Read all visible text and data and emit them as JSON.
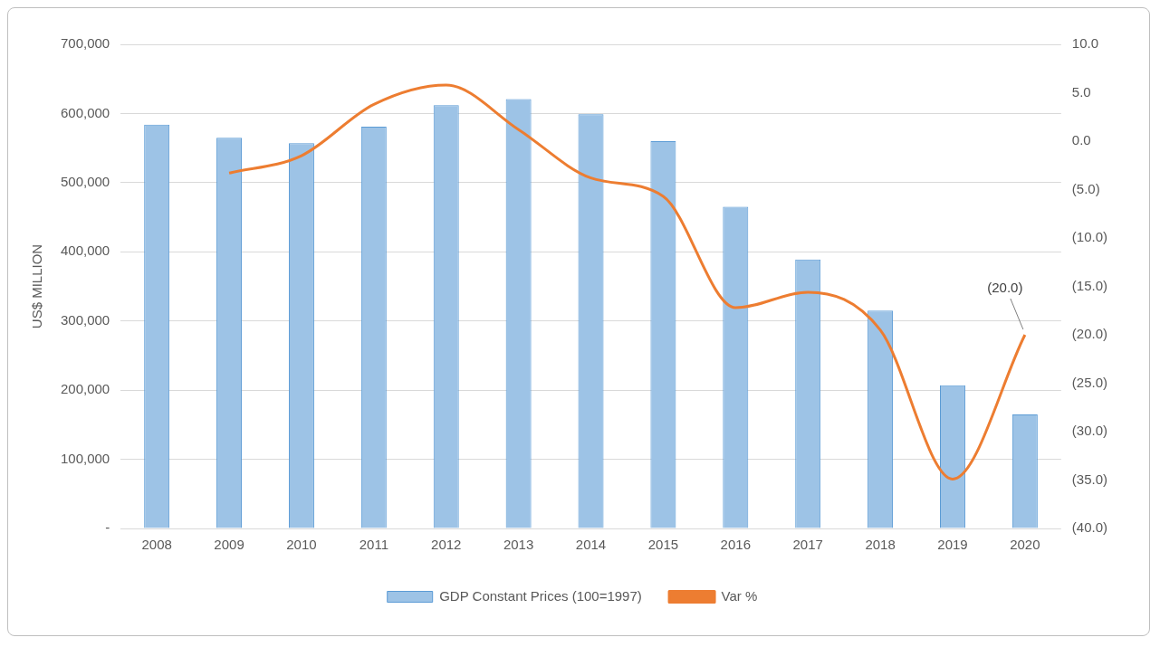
{
  "chart_data": {
    "type": "bar",
    "ylabel": "US$ MILLION",
    "categories": [
      "2008",
      "2009",
      "2010",
      "2011",
      "2012",
      "2013",
      "2014",
      "2015",
      "2016",
      "2017",
      "2018",
      "2019",
      "2020"
    ],
    "series": [
      {
        "name": "GDP Constant Prices (100=1997)",
        "color": "#9dc3e6",
        "values": [
          584000,
          565000,
          557000,
          581000,
          612000,
          621000,
          599000,
          560000,
          465000,
          389000,
          315000,
          207000,
          165000
        ]
      },
      {
        "name": "Var %",
        "type": "line",
        "axis": "y2",
        "color": "#ed7d31",
        "marker": "none",
        "values": [
          null,
          -3.3,
          -1.5,
          3.8,
          5.8,
          1.2,
          -3.8,
          -5.7,
          -17.2,
          -15.6,
          -19.5,
          -34.9,
          -20.0
        ],
        "value_labels": [
          null,
          null,
          null,
          null,
          null,
          null,
          null,
          null,
          null,
          null,
          null,
          null,
          "(20.0)"
        ]
      }
    ],
    "ylim": [
      0,
      700000
    ],
    "yticks": [
      {
        "value": 0,
        "label": "-"
      },
      {
        "value": 100000,
        "label": "100,000"
      },
      {
        "value": 200000,
        "label": "200,000"
      },
      {
        "value": 300000,
        "label": "300,000"
      },
      {
        "value": 400000,
        "label": "400,000"
      },
      {
        "value": 500000,
        "label": "500,000"
      },
      {
        "value": 600000,
        "label": "600,000"
      },
      {
        "value": 700000,
        "label": "700,000"
      }
    ],
    "y2lim": [
      -40,
      10
    ],
    "y2ticks": [
      {
        "value": -40,
        "label": "(40.0)"
      },
      {
        "value": -35,
        "label": "(35.0)"
      },
      {
        "value": -30,
        "label": "(30.0)"
      },
      {
        "value": -25,
        "label": "(25.0)"
      },
      {
        "value": -20,
        "label": "(20.0)"
      },
      {
        "value": -15,
        "label": "(15.0)"
      },
      {
        "value": -10,
        "label": "(10.0)"
      },
      {
        "value": -5,
        "label": "(5.0)"
      },
      {
        "value": 0,
        "label": "0.0"
      },
      {
        "value": 5,
        "label": "5.0"
      },
      {
        "value": 10,
        "label": "10.0"
      }
    ],
    "grid": "y",
    "legend": "bottom"
  }
}
